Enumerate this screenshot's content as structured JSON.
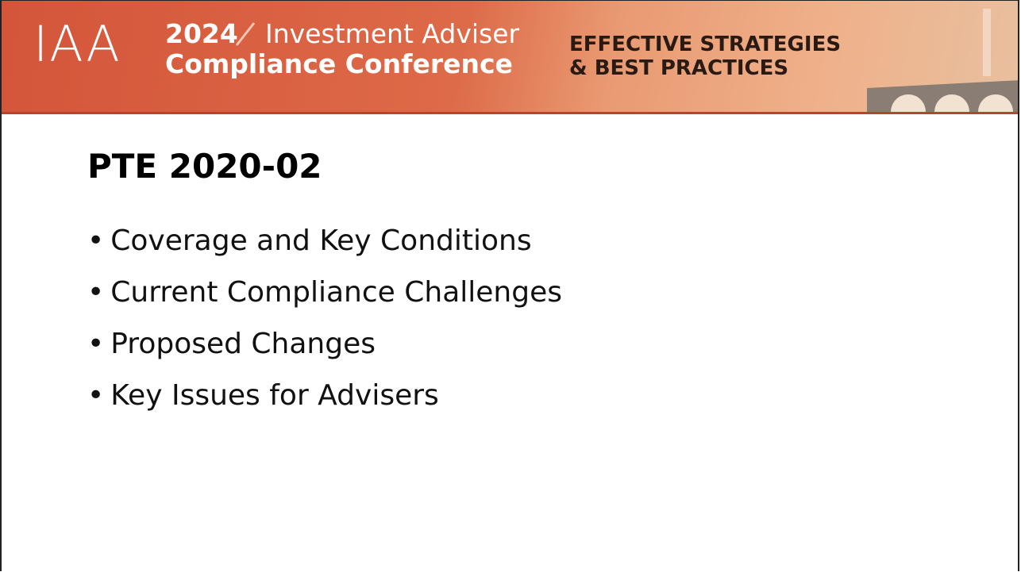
{
  "header": {
    "logo": "IAA",
    "year": "2024",
    "event_line1": "Investment Adviser",
    "event_line2": "Compliance Conference",
    "tagline_line1": "EFFECTIVE STRATEGIES",
    "tagline_line2": "& BEST PRACTICES"
  },
  "slide": {
    "title": "PTE 2020-02",
    "bullets": [
      "Coverage and Key Conditions",
      "Current Compliance Challenges",
      "Proposed Changes",
      "Key Issues for Advisers"
    ]
  }
}
